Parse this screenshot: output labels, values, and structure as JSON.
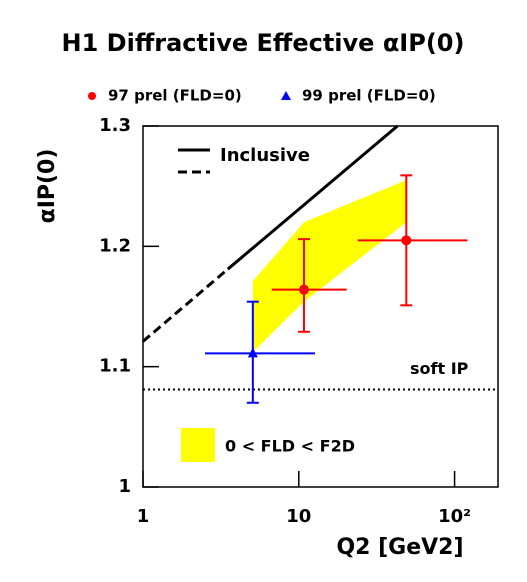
{
  "chart_data": {
    "type": "errorbar",
    "title": "H1 Diffractive Effective αIP(0)",
    "y_label": "αIP(0)",
    "x_label": "Q2 [GeV2]",
    "log_x": true,
    "xlim": [
      1,
      190
    ],
    "xticks": [
      1,
      10,
      {
        "value": 100,
        "label": "10²"
      }
    ],
    "ylim": [
      1,
      1.3
    ],
    "yticks": [
      1,
      1.1,
      1.2,
      1.3
    ],
    "series": [
      {
        "name": "97 prel (FLD=0)",
        "color": "#ff0000",
        "marker": "circle",
        "x": [
          10.8,
          49
        ],
        "values": [
          1.164,
          1.205
        ],
        "x_low": [
          6.7,
          23.9
        ],
        "x_high": [
          20.3,
          121
        ],
        "y_low": [
          1.129,
          1.151
        ],
        "y_high": [
          1.206,
          1.259
        ]
      },
      {
        "name": "99 prel (FLD=0)",
        "color": "#0000ff",
        "marker": "triangle",
        "x": [
          5.07
        ],
        "values": [
          1.111
        ],
        "x_low": [
          2.5
        ],
        "x_high": [
          12.7
        ],
        "y_low": [
          1.07
        ],
        "y_high": [
          1.154
        ]
      }
    ],
    "lines": [
      {
        "name": "Inclusive",
        "color": "#000000",
        "x": [
          3.5,
          43
        ],
        "values": [
          1.181,
          1.3
        ]
      },
      {
        "color": "#000000",
        "dashed": true,
        "x": [
          1,
          3.5
        ],
        "values": [
          1.121,
          1.181
        ]
      }
    ],
    "hline": {
      "name": "soft IP",
      "value": 1.081,
      "color": "#000000"
    },
    "band": {
      "name": "0 < FLD < F2D",
      "color": "#ffff00",
      "x": [
        5.07,
        10.8,
        49
      ],
      "upper": [
        1.171,
        1.22,
        1.255
      ],
      "lower": [
        1.112,
        1.154,
        1.22
      ]
    }
  }
}
